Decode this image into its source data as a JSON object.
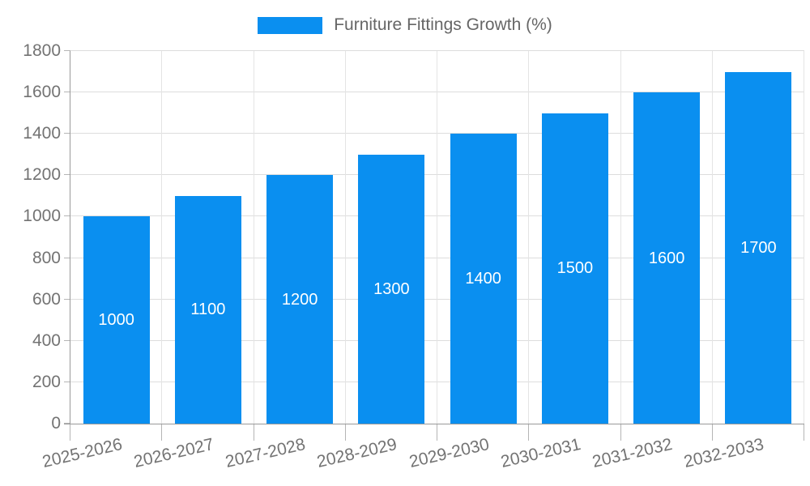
{
  "legend": {
    "label": "Furniture Fittings Growth (%)"
  },
  "chart_data": {
    "type": "bar",
    "title": "Furniture Fittings Growth (%)",
    "categories": [
      "2025-2026",
      "2026-2027",
      "2027-2028",
      "2028-2029",
      "2029-2030",
      "2030-2031",
      "2031-2032",
      "2032-2033"
    ],
    "values": [
      1000,
      1100,
      1200,
      1300,
      1400,
      1500,
      1600,
      1700
    ],
    "xlabel": "",
    "ylabel": "",
    "ylim": [
      0,
      1800
    ],
    "yticks": [
      0,
      200,
      400,
      600,
      800,
      1000,
      1200,
      1400,
      1600,
      1800
    ],
    "grid": true,
    "legend_position": "top",
    "value_labels_position": "center-inside",
    "colors": {
      "bar": "#0A8FF0",
      "bar_value_label": "#FFFFFF",
      "axis_text": "#737373",
      "legend_text": "#666666",
      "gridline_horizontal": "#DDDDDD",
      "gridline_vertical": "#E4E4E4",
      "axis_line": "#999999",
      "tick": "#B5B5B5",
      "background": "#FFFFFF"
    }
  }
}
